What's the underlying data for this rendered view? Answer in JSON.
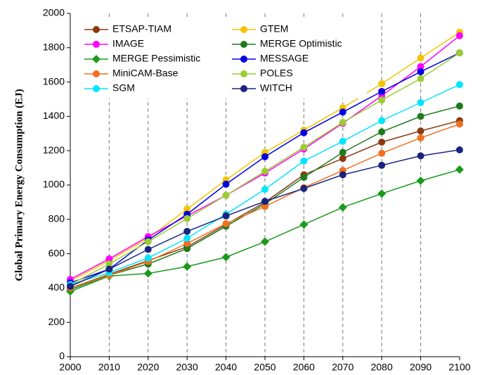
{
  "chart_data": {
    "type": "line",
    "y_label": "Global Primary Energy Consumption (EJ)",
    "x": [
      2000,
      2010,
      2020,
      2030,
      2040,
      2050,
      2060,
      2070,
      2080,
      2090,
      2100
    ],
    "xlim": [
      2000,
      2100
    ],
    "xticks": [
      2000,
      2010,
      2020,
      2030,
      2040,
      2050,
      2060,
      2070,
      2080,
      2090,
      2100
    ],
    "ylim": [
      0,
      2000
    ],
    "yticks": [
      0,
      200,
      400,
      600,
      800,
      1000,
      1200,
      1400,
      1600,
      1800,
      2000
    ],
    "grid": "x",
    "legend": "upper left",
    "series": [
      {
        "name": "ETSAP-TIAM",
        "color": "#8b3a0f",
        "marker": "circle",
        "values": [
          400,
          480,
          560,
          640,
          770,
          900,
          1060,
          1155,
          1250,
          1315,
          1375
        ]
      },
      {
        "name": "GTEM",
        "color": "#f5c400",
        "marker": "circle",
        "values": [
          440,
          560,
          690,
          860,
          1030,
          1190,
          1320,
          1450,
          1590,
          1740,
          1890
        ]
      },
      {
        "name": "IMAGE",
        "color": "#ff00ff",
        "marker": "circle",
        "values": [
          450,
          570,
          700,
          820,
          940,
          1070,
          1210,
          1360,
          1520,
          1690,
          1870
        ]
      },
      {
        "name": "MERGE Optimistic",
        "color": "#1e7b1e",
        "marker": "circle",
        "values": [
          390,
          475,
          540,
          630,
          760,
          890,
          1045,
          1190,
          1310,
          1400,
          1460
        ]
      },
      {
        "name": "MERGE Pessimistic",
        "color": "#1a9a1a",
        "marker": "diamond",
        "values": [
          380,
          470,
          485,
          525,
          580,
          670,
          770,
          870,
          950,
          1025,
          1090
        ]
      },
      {
        "name": "MESSAGE",
        "color": "#0000e0",
        "marker": "circle",
        "values": [
          430,
          510,
          680,
          830,
          1005,
          1165,
          1305,
          1425,
          1545,
          1660,
          1770
        ]
      },
      {
        "name": "MiniCAM-Base",
        "color": "#f07020",
        "marker": "circle",
        "values": [
          400,
          475,
          555,
          660,
          775,
          875,
          985,
          1085,
          1185,
          1275,
          1355
        ]
      },
      {
        "name": "POLES",
        "color": "#9acd32",
        "marker": "circle",
        "values": [
          420,
          540,
          670,
          805,
          940,
          1080,
          1220,
          1365,
          1495,
          1620,
          1770
        ]
      },
      {
        "name": "SGM",
        "color": "#00e5ff",
        "marker": "circle",
        "values": [
          420,
          490,
          575,
          690,
          830,
          975,
          1140,
          1255,
          1375,
          1480,
          1585
        ]
      },
      {
        "name": "WITCH",
        "color": "#1a237e",
        "marker": "circle",
        "values": [
          410,
          510,
          625,
          730,
          820,
          905,
          980,
          1060,
          1115,
          1170,
          1205
        ]
      }
    ]
  }
}
